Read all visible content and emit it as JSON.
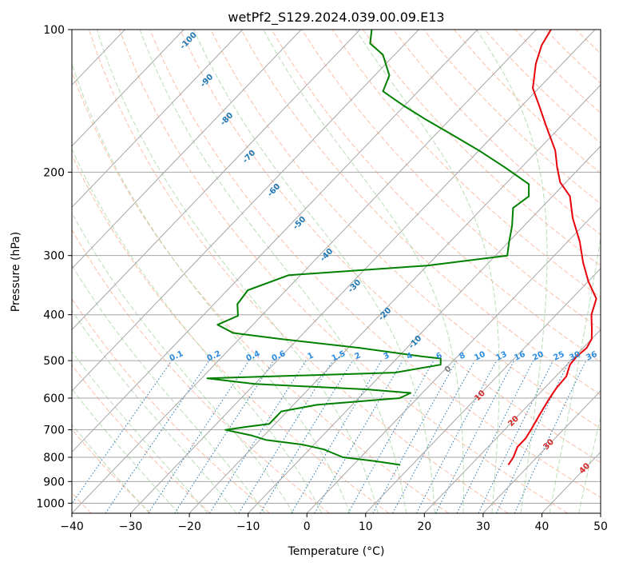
{
  "chart_data": {
    "type": "skew-t",
    "title": "wetPf2_S129.2024.039.00.09.E13",
    "xlabel": "Temperature (°C)",
    "ylabel": "Pressure (hPa)",
    "xlim": [
      -40,
      50
    ],
    "ylim": [
      1050,
      100
    ],
    "x_ticks": [
      "−40",
      "−30",
      "−20",
      "−10",
      "0",
      "10",
      "20",
      "30",
      "40",
      "50"
    ],
    "y_ticks": [
      "100",
      "200",
      "300",
      "400",
      "500",
      "600",
      "700",
      "800",
      "900",
      "1000"
    ],
    "grid": true,
    "series": [
      {
        "name": "",
        "role": "temperature",
        "color": "#e8000b",
        "points": [
          [
            26.4,
            830
          ],
          [
            26.0,
            800
          ],
          [
            25.0,
            760
          ],
          [
            25.0,
            730
          ],
          [
            24.5,
            700
          ],
          [
            23.5,
            650
          ],
          [
            22.5,
            600
          ],
          [
            22.0,
            570
          ],
          [
            21.8,
            540
          ],
          [
            20.5,
            510
          ],
          [
            20.3,
            490
          ],
          [
            20.6,
            470
          ],
          [
            20.0,
            450
          ],
          [
            18.5,
            430
          ],
          [
            16.0,
            400
          ],
          [
            14.2,
            370
          ],
          [
            10.0,
            340
          ],
          [
            6.0,
            310
          ],
          [
            2.0,
            280
          ],
          [
            -3.0,
            250
          ],
          [
            -7.0,
            225
          ],
          [
            -11.0,
            210
          ],
          [
            -14.0,
            195
          ],
          [
            -17.0,
            180
          ],
          [
            -22.5,
            160
          ],
          [
            -27.0,
            145
          ],
          [
            -31.0,
            133
          ],
          [
            -34.5,
            118
          ],
          [
            -36.5,
            108
          ],
          [
            -37.5,
            100
          ]
        ]
      },
      {
        "name": "",
        "role": "dewpoint",
        "color": "#008000",
        "points": [
          [
            8.0,
            830
          ],
          [
            3.0,
            815
          ],
          [
            -3.0,
            800
          ],
          [
            -6.0,
            780
          ],
          [
            -7.5,
            770
          ],
          [
            -12.0,
            752
          ],
          [
            -19.0,
            735
          ],
          [
            -22.0,
            720
          ],
          [
            -27.5,
            700
          ],
          [
            -24.5,
            690
          ],
          [
            -21.0,
            680
          ],
          [
            -21.0,
            660
          ],
          [
            -21.0,
            640
          ],
          [
            -16.0,
            620
          ],
          [
            -3.0,
            600
          ],
          [
            -2.0,
            585
          ],
          [
            -10.0,
            575
          ],
          [
            -30.0,
            560
          ],
          [
            -39.0,
            545
          ],
          [
            -8.0,
            530
          ],
          [
            -1.5,
            510
          ],
          [
            -2.5,
            495
          ],
          [
            -6.0,
            490
          ],
          [
            -18.0,
            470
          ],
          [
            -33.0,
            450
          ],
          [
            -42.0,
            437
          ],
          [
            -46.0,
            420
          ],
          [
            -44.0,
            402
          ],
          [
            -46.0,
            380
          ],
          [
            -46.5,
            355
          ],
          [
            -42.0,
            330
          ],
          [
            -20.0,
            315
          ],
          [
            -8.0,
            300
          ],
          [
            -10.0,
            280
          ],
          [
            -12.0,
            260
          ],
          [
            -14.8,
            238
          ],
          [
            -14.0,
            225
          ],
          [
            -16.0,
            212
          ],
          [
            -23.0,
            195
          ],
          [
            -30.0,
            180
          ],
          [
            -37.0,
            167
          ],
          [
            -44.0,
            155
          ],
          [
            -50.0,
            145
          ],
          [
            -56.0,
            135
          ],
          [
            -57.5,
            125
          ],
          [
            -62.0,
            113
          ],
          [
            -66.0,
            107
          ],
          [
            -68.0,
            100
          ]
        ]
      }
    ],
    "dry_adiabat_labels": [
      "-100",
      "-90",
      "-80",
      "-70",
      "-60",
      "-50",
      "-40",
      "-30",
      "-20",
      "-10",
      "0",
      "10",
      "20",
      "30",
      "40"
    ],
    "mixing_ratio_labels": [
      "0.1",
      "0.2",
      "0.4",
      "0.6",
      "1",
      "1.5",
      "2",
      "3",
      "4",
      "6",
      "8",
      "10",
      "13",
      "16",
      "20",
      "25",
      "30",
      "36"
    ],
    "colors": {
      "isotherm": "#a6a6a6",
      "isobar": "#a6a6a6",
      "dry_adiabat": "#f9a98b",
      "moist_adiabat": "#a8d5a2",
      "mixing_ratio": "#1f77b4",
      "label_blue": "#1f77b4",
      "label_bright_blue": "#2b8ce0",
      "label_red": "#d62728",
      "label_gray": "#808080"
    }
  }
}
